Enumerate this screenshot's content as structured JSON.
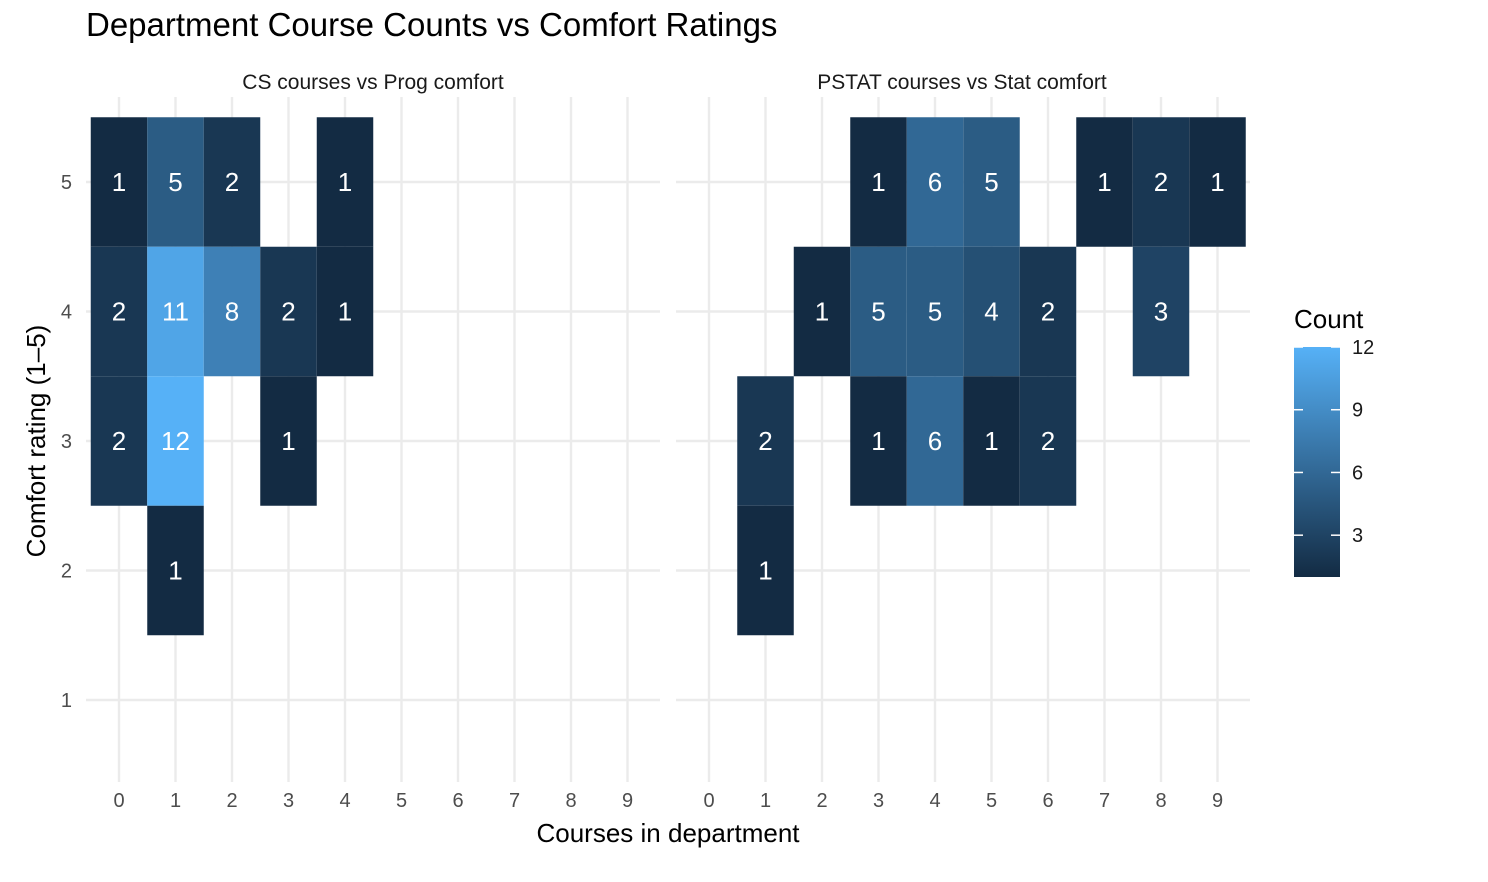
{
  "chart_data": {
    "type": "heatmap",
    "title": "Department Course Counts vs Comfort Ratings",
    "xlabel": "Courses in department",
    "ylabel": "Comfort rating (1–5)",
    "x_ticks": [
      "0",
      "1",
      "2",
      "3",
      "4",
      "5",
      "6",
      "7",
      "8",
      "9"
    ],
    "y_ticks": [
      "1",
      "2",
      "3",
      "4",
      "5"
    ],
    "xlim": [
      0,
      9
    ],
    "ylim": [
      1,
      5
    ],
    "grid": true,
    "legend": {
      "title": "Count",
      "placement": "right",
      "ticks": [
        "3",
        "6",
        "9",
        "12"
      ],
      "min": 1,
      "max": 12,
      "low_color": "#132B43",
      "high_color": "#56B1F7"
    },
    "panels": [
      {
        "strip": "CS courses vs Prog comfort",
        "cells": [
          {
            "x": 0,
            "y": 5,
            "count": 1
          },
          {
            "x": 1,
            "y": 5,
            "count": 5
          },
          {
            "x": 2,
            "y": 5,
            "count": 2
          },
          {
            "x": 4,
            "y": 5,
            "count": 1
          },
          {
            "x": 0,
            "y": 4,
            "count": 2
          },
          {
            "x": 1,
            "y": 4,
            "count": 11
          },
          {
            "x": 2,
            "y": 4,
            "count": 8
          },
          {
            "x": 3,
            "y": 4,
            "count": 2
          },
          {
            "x": 4,
            "y": 4,
            "count": 1
          },
          {
            "x": 0,
            "y": 3,
            "count": 2
          },
          {
            "x": 1,
            "y": 3,
            "count": 12
          },
          {
            "x": 3,
            "y": 3,
            "count": 1
          },
          {
            "x": 1,
            "y": 2,
            "count": 1
          }
        ]
      },
      {
        "strip": "PSTAT courses vs Stat comfort",
        "cells": [
          {
            "x": 3,
            "y": 5,
            "count": 1
          },
          {
            "x": 4,
            "y": 5,
            "count": 6
          },
          {
            "x": 5,
            "y": 5,
            "count": 5
          },
          {
            "x": 7,
            "y": 5,
            "count": 1
          },
          {
            "x": 8,
            "y": 5,
            "count": 2
          },
          {
            "x": 9,
            "y": 5,
            "count": 1
          },
          {
            "x": 2,
            "y": 4,
            "count": 1
          },
          {
            "x": 3,
            "y": 4,
            "count": 5
          },
          {
            "x": 4,
            "y": 4,
            "count": 5
          },
          {
            "x": 5,
            "y": 4,
            "count": 4
          },
          {
            "x": 6,
            "y": 4,
            "count": 2
          },
          {
            "x": 8,
            "y": 4,
            "count": 3
          },
          {
            "x": 1,
            "y": 3,
            "count": 2
          },
          {
            "x": 3,
            "y": 3,
            "count": 1
          },
          {
            "x": 4,
            "y": 3,
            "count": 6
          },
          {
            "x": 5,
            "y": 3,
            "count": 1
          },
          {
            "x": 6,
            "y": 3,
            "count": 2
          },
          {
            "x": 1,
            "y": 2,
            "count": 1
          }
        ]
      }
    ]
  }
}
